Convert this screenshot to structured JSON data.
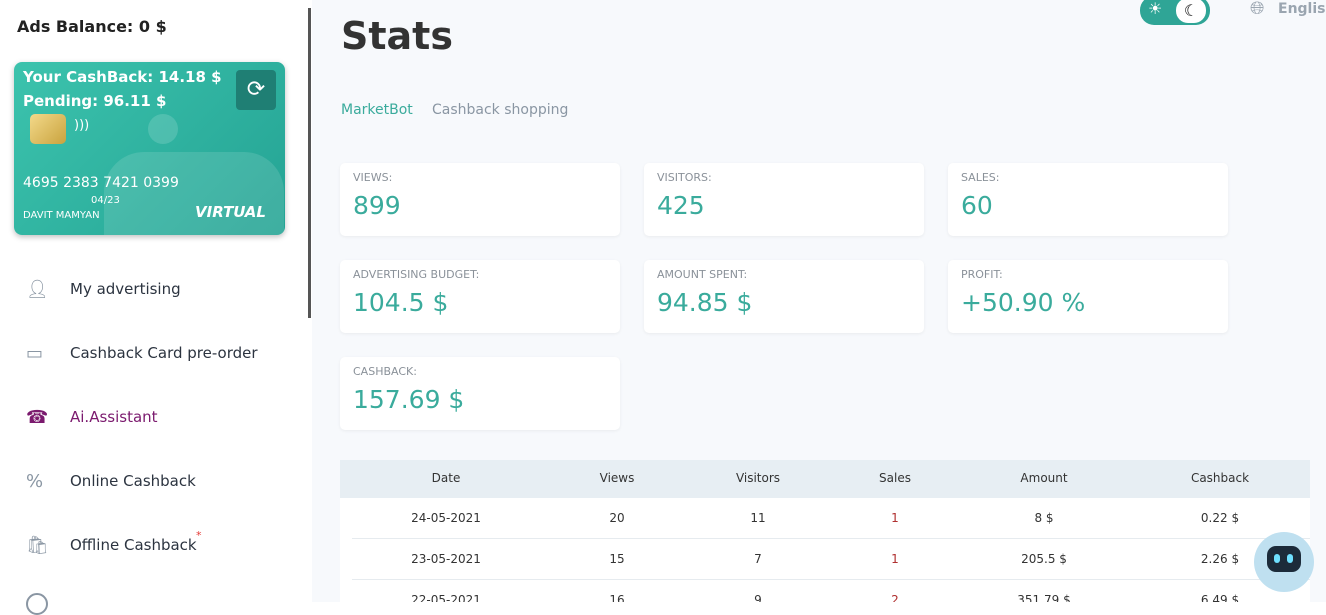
{
  "sidebar": {
    "balance": "Ads Balance: 0 $",
    "card": {
      "cashback": "Your CashBack: 14.18 $",
      "pending": "Pending: 96.11 $",
      "number": "4695 2383 7421 0399",
      "expiry": "04/23",
      "holder": "DAVIT MAMYAN",
      "brand": "VIRTUAL"
    },
    "nav": [
      {
        "label": "My advertising"
      },
      {
        "label": "Cashback Card pre-order"
      },
      {
        "label": "Ai.Assistant"
      },
      {
        "label": "Online Cashback"
      },
      {
        "label": "Offline Cashback",
        "badge": "*"
      }
    ]
  },
  "header": {
    "title": "Stats",
    "language": "English"
  },
  "tabs": [
    "MarketBot",
    "Cashback shopping"
  ],
  "stats": [
    {
      "label": "VIEWS:",
      "value": "899"
    },
    {
      "label": "VISITORS:",
      "value": "425"
    },
    {
      "label": "SALES:",
      "value": "60"
    },
    {
      "label": "ADVERTISING BUDGET:",
      "value": "104.5 $"
    },
    {
      "label": "AMOUNT SPENT:",
      "value": "94.85 $"
    },
    {
      "label": "PROFIT:",
      "value": "+50.90 %"
    },
    {
      "label": "CASHBACK:",
      "value": "157.69 $"
    }
  ],
  "table": {
    "headers": [
      "Date",
      "Views",
      "Visitors",
      "Sales",
      "Amount",
      "Cashback"
    ],
    "rows": [
      [
        "24-05-2021",
        "20",
        "11",
        "1",
        "8 $",
        "0.22 $"
      ],
      [
        "23-05-2021",
        "15",
        "7",
        "1",
        "205.5 $",
        "2.26 $"
      ],
      [
        "22-05-2021",
        "16",
        "9",
        "2",
        "351.79 $",
        "6.49 $"
      ]
    ]
  }
}
